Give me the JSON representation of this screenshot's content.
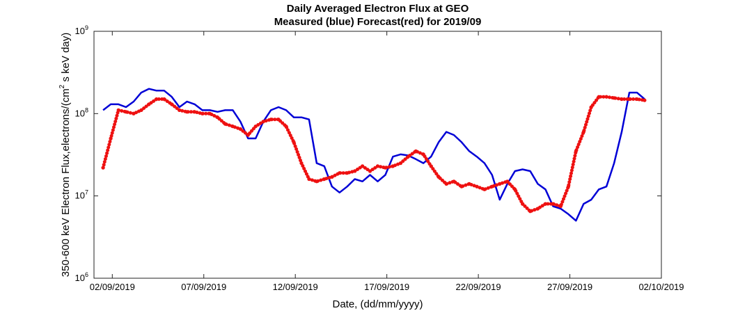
{
  "chart_data": {
    "type": "line",
    "title": [
      "Daily Averaged Electron Flux at GEO",
      "Measured (blue) Forecast(red) for 2019/09"
    ],
    "xlabel": "Date, (dd/mm/yyyy)",
    "ylabel": "350-600 keV Electron Flux,electrons/(cm² s keV day)",
    "x_ticks": [
      "02/09/2019",
      "07/09/2019",
      "12/09/2019",
      "17/09/2019",
      "22/09/2019",
      "27/09/2019",
      "02/10/2019"
    ],
    "xlim": [
      "2019-09-01",
      "2019-10-02"
    ],
    "y_scale": "log",
    "ylim": [
      1000000,
      1000000000
    ],
    "y_ticks": [
      {
        "base": "10",
        "exp": "6"
      },
      {
        "base": "10",
        "exp": "7"
      },
      {
        "base": "10",
        "exp": "8"
      },
      {
        "base": "10",
        "exp": "9"
      }
    ],
    "grid": false,
    "series": [
      {
        "color": "#0000d6",
        "style": "solid line",
        "x": [
          "2019-09-01T12",
          "2019-09-01T22",
          "2019-09-02T08",
          "2019-09-02T18",
          "2019-09-03T04",
          "2019-09-03T14",
          "2019-09-04T00",
          "2019-09-04T10",
          "2019-09-04T20",
          "2019-09-05T06",
          "2019-09-05T16",
          "2019-09-06T02",
          "2019-09-06T12",
          "2019-09-06T22",
          "2019-09-07T08",
          "2019-09-07T18",
          "2019-09-08T04",
          "2019-09-08T14",
          "2019-09-09T00",
          "2019-09-09T10",
          "2019-09-09T20",
          "2019-09-10T06",
          "2019-09-10T16",
          "2019-09-11T02",
          "2019-09-11T12",
          "2019-09-11T22",
          "2019-09-12T08",
          "2019-09-12T18",
          "2019-09-13T04",
          "2019-09-13T14",
          "2019-09-14T00",
          "2019-09-14T10",
          "2019-09-14T20",
          "2019-09-15T06",
          "2019-09-15T16",
          "2019-09-16T02",
          "2019-09-16T12",
          "2019-09-16T22",
          "2019-09-17T08",
          "2019-09-17T18",
          "2019-09-18T04",
          "2019-09-18T14",
          "2019-09-19T00",
          "2019-09-19T10",
          "2019-09-19T20",
          "2019-09-20T06",
          "2019-09-20T16",
          "2019-09-21T02",
          "2019-09-21T12",
          "2019-09-21T22",
          "2019-09-22T08",
          "2019-09-22T18",
          "2019-09-23T04",
          "2019-09-23T14",
          "2019-09-24T00",
          "2019-09-24T10",
          "2019-09-24T20",
          "2019-09-25T06",
          "2019-09-25T16",
          "2019-09-26T02",
          "2019-09-26T12",
          "2019-09-26T22",
          "2019-09-27T08",
          "2019-09-27T18",
          "2019-09-28T04",
          "2019-09-28T14",
          "2019-09-29T00",
          "2019-09-29T10",
          "2019-09-29T20",
          "2019-09-30T06",
          "2019-09-30T16",
          "2019-10-01T02"
        ],
        "y": [
          110000000.0,
          130000000.0,
          130000000.0,
          120000000.0,
          140000000.0,
          180000000.0,
          200000000.0,
          190000000.0,
          190000000.0,
          160000000.0,
          120000000.0,
          140000000.0,
          130000000.0,
          110000000.0,
          110000000.0,
          105000000.0,
          110000000.0,
          110000000.0,
          80000000.0,
          50000000.0,
          50000000.0,
          80000000.0,
          110000000.0,
          120000000.0,
          110000000.0,
          90000000.0,
          90000000.0,
          85000000.0,
          25000000.0,
          23000000.0,
          13000000.0,
          11000000.0,
          13000000.0,
          16000000.0,
          15000000.0,
          18000000.0,
          15000000.0,
          18000000.0,
          30000000.0,
          32000000.0,
          31000000.0,
          28000000.0,
          25000000.0,
          30000000.0,
          45000000.0,
          60000000.0,
          55000000.0,
          45000000.0,
          35000000.0,
          30000000.0,
          25000000.0,
          18000000.0,
          9000000.0,
          14000000.0,
          20000000.0,
          21000000.0,
          20000000.0,
          14000000.0,
          12000000.0,
          7500000.0,
          7000000.0,
          6000000.0,
          5000000.0,
          8000000.0,
          9000000.0,
          12000000.0,
          13000000.0,
          25000000.0,
          60000000.0,
          180000000.0,
          180000000.0,
          150000000.0
        ]
      },
      {
        "color": "#ee1111",
        "style": "dotted markers",
        "x": [
          "2019-09-01T12",
          "2019-09-01T22",
          "2019-09-02T08",
          "2019-09-02T18",
          "2019-09-03T04",
          "2019-09-03T14",
          "2019-09-04T00",
          "2019-09-04T10",
          "2019-09-04T20",
          "2019-09-05T06",
          "2019-09-05T16",
          "2019-09-06T02",
          "2019-09-06T12",
          "2019-09-06T22",
          "2019-09-07T08",
          "2019-09-07T18",
          "2019-09-08T04",
          "2019-09-08T14",
          "2019-09-09T00",
          "2019-09-09T10",
          "2019-09-09T20",
          "2019-09-10T06",
          "2019-09-10T16",
          "2019-09-11T02",
          "2019-09-11T12",
          "2019-09-11T22",
          "2019-09-12T08",
          "2019-09-12T18",
          "2019-09-13T04",
          "2019-09-13T14",
          "2019-09-14T00",
          "2019-09-14T10",
          "2019-09-14T20",
          "2019-09-15T06",
          "2019-09-15T16",
          "2019-09-16T02",
          "2019-09-16T12",
          "2019-09-16T22",
          "2019-09-17T08",
          "2019-09-17T18",
          "2019-09-18T04",
          "2019-09-18T14",
          "2019-09-19T00",
          "2019-09-19T10",
          "2019-09-19T20",
          "2019-09-20T06",
          "2019-09-20T16",
          "2019-09-21T02",
          "2019-09-21T12",
          "2019-09-21T22",
          "2019-09-22T08",
          "2019-09-22T18",
          "2019-09-23T04",
          "2019-09-23T14",
          "2019-09-24T00",
          "2019-09-24T10",
          "2019-09-24T20",
          "2019-09-25T06",
          "2019-09-25T16",
          "2019-09-26T02",
          "2019-09-26T12",
          "2019-09-26T22",
          "2019-09-27T08",
          "2019-09-27T18",
          "2019-09-28T04",
          "2019-09-28T14",
          "2019-09-29T00",
          "2019-09-29T10",
          "2019-09-29T20",
          "2019-09-30T06",
          "2019-09-30T16",
          "2019-10-01T02"
        ],
        "y": [
          22000000.0,
          50000000.0,
          110000000.0,
          105000000.0,
          100000000.0,
          110000000.0,
          130000000.0,
          150000000.0,
          150000000.0,
          130000000.0,
          110000000.0,
          105000000.0,
          105000000.0,
          100000000.0,
          100000000.0,
          90000000.0,
          75000000.0,
          70000000.0,
          65000000.0,
          55000000.0,
          70000000.0,
          80000000.0,
          85000000.0,
          85000000.0,
          70000000.0,
          45000000.0,
          25000000.0,
          16000000.0,
          15000000.0,
          16000000.0,
          17000000.0,
          19000000.0,
          19000000.0,
          20000000.0,
          23000000.0,
          20000000.0,
          23000000.0,
          22000000.0,
          23000000.0,
          25000000.0,
          30000000.0,
          35000000.0,
          32000000.0,
          23000000.0,
          17000000.0,
          14000000.0,
          15000000.0,
          13000000.0,
          14000000.0,
          13000000.0,
          12000000.0,
          13000000.0,
          14000000.0,
          15000000.0,
          12000000.0,
          8000000.0,
          6500000.0,
          7000000.0,
          8000000.0,
          8000000.0,
          7500000.0,
          13000000.0,
          35000000.0,
          60000000.0,
          120000000.0,
          160000000.0,
          160000000.0,
          155000000.0,
          150000000.0,
          150000000.0,
          150000000.0,
          145000000.0
        ]
      }
    ]
  }
}
